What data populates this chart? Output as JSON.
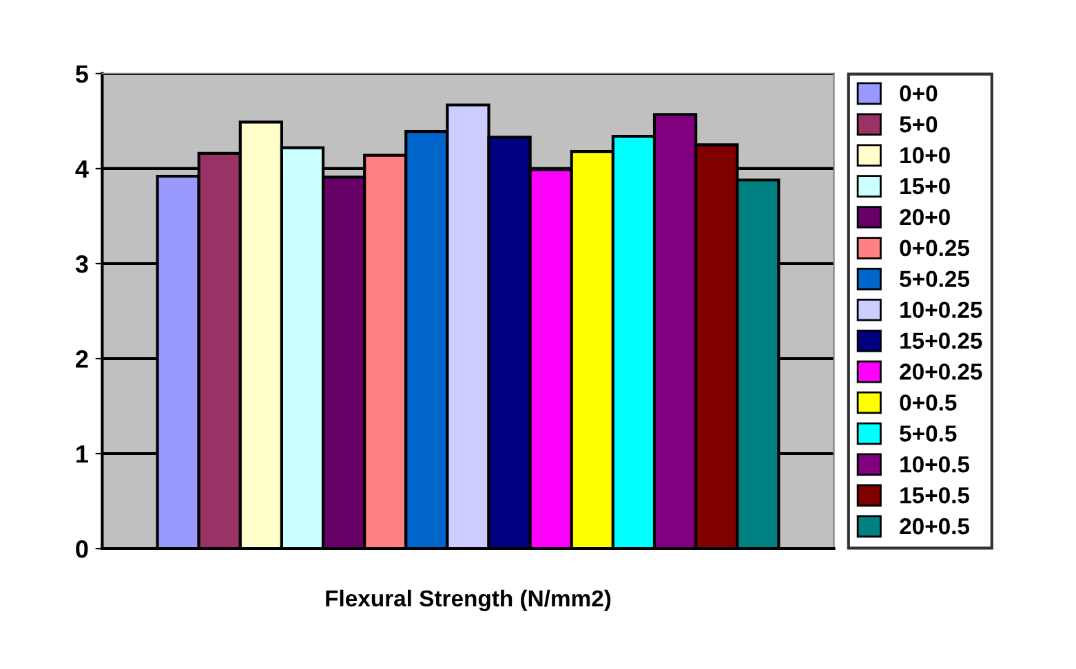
{
  "chart_data": {
    "type": "bar",
    "xlabel": "Flexural Strength (N/mm2)",
    "categories": [
      null
    ],
    "ylim": [
      0,
      5
    ],
    "yticks": [
      0,
      1,
      2,
      3,
      4,
      5
    ],
    "grid": "y",
    "legend": "right",
    "series": [
      {
        "name": "0+0",
        "color": "#9999ff",
        "values": [
          3.92
        ]
      },
      {
        "name": "5+0",
        "color": "#993366",
        "values": [
          4.16
        ]
      },
      {
        "name": "10+0",
        "color": "#ffffcc",
        "values": [
          4.49
        ]
      },
      {
        "name": "15+0",
        "color": "#ccffff",
        "values": [
          4.22
        ]
      },
      {
        "name": "20+0",
        "color": "#660066",
        "values": [
          3.91
        ]
      },
      {
        "name": "0+0.25",
        "color": "#ff8080",
        "values": [
          4.14
        ]
      },
      {
        "name": "5+0.25",
        "color": "#0066cc",
        "values": [
          4.39
        ]
      },
      {
        "name": "10+0.25",
        "color": "#ccccff",
        "values": [
          4.67
        ]
      },
      {
        "name": "15+0.25",
        "color": "#000080",
        "values": [
          4.33
        ]
      },
      {
        "name": "20+0.25",
        "color": "#ff00ff",
        "values": [
          3.99
        ]
      },
      {
        "name": "0+0.5",
        "color": "#ffff00",
        "values": [
          4.18
        ]
      },
      {
        "name": "5+0.5",
        "color": "#00ffff",
        "values": [
          4.34
        ]
      },
      {
        "name": "10+0.5",
        "color": "#800080",
        "values": [
          4.57
        ]
      },
      {
        "name": "15+0.5",
        "color": "#800000",
        "values": [
          4.25
        ]
      },
      {
        "name": "20+0.5",
        "color": "#008080",
        "values": [
          3.88
        ]
      }
    ]
  }
}
